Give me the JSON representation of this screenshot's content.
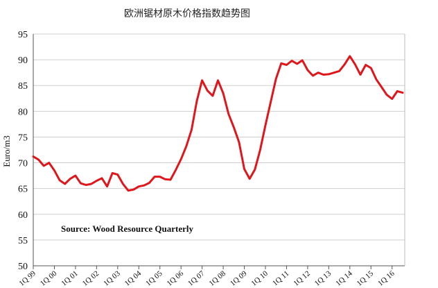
{
  "chart_data": {
    "type": "line",
    "title": "欧洲锯材原木价格指数趋势图",
    "ylabel": "Euro/m3",
    "xlabel": "",
    "ylim": [
      50,
      95
    ],
    "yticks": [
      50,
      55,
      60,
      65,
      70,
      75,
      80,
      85,
      90,
      95
    ],
    "xlim": [
      0,
      70.4
    ],
    "xticks": [
      {
        "label": "1Q 99",
        "x": 0
      },
      {
        "label": "1Q 00",
        "x": 4
      },
      {
        "label": "1Q 01",
        "x": 8
      },
      {
        "label": "1Q 02",
        "x": 12
      },
      {
        "label": "1Q 03",
        "x": 16
      },
      {
        "label": "1Q 04",
        "x": 20
      },
      {
        "label": "1Q 05",
        "x": 24
      },
      {
        "label": "1Q 06",
        "x": 28
      },
      {
        "label": "1Q 07",
        "x": 32
      },
      {
        "label": "1Q 08",
        "x": 36
      },
      {
        "label": "1Q 09",
        "x": 40
      },
      {
        "label": "1Q 10",
        "x": 44
      },
      {
        "label": "1Q 11",
        "x": 48
      },
      {
        "label": "1Q 12",
        "x": 52
      },
      {
        "label": "1Q 13",
        "x": 56
      },
      {
        "label": "1Q 14",
        "x": 60
      },
      {
        "label": "1Q 15",
        "x": 64
      },
      {
        "label": "1Q 16",
        "x": 68
      }
    ],
    "grid": true,
    "line_color": "#e0161b",
    "annotation": "Source: Wood Resource Quarterly",
    "series": [
      {
        "name": "",
        "x": [
          0,
          1,
          2,
          3,
          4,
          5,
          6,
          7,
          8,
          9,
          10,
          11,
          12,
          13,
          14,
          15,
          16,
          17,
          18,
          19,
          20,
          21,
          22,
          23,
          24,
          25,
          26,
          27,
          28,
          29,
          30,
          31,
          32,
          33,
          34,
          35,
          36,
          37,
          38,
          39,
          40,
          41,
          42,
          43,
          44,
          45,
          46,
          47,
          48,
          49,
          50,
          51,
          52,
          53,
          54,
          55,
          56,
          57,
          58,
          59,
          60,
          61,
          62,
          63,
          64,
          65,
          66,
          67,
          68,
          69,
          70
        ],
        "values": [
          71.2,
          70.6,
          69.4,
          70.0,
          68.5,
          66.6,
          65.9,
          66.9,
          67.5,
          66.0,
          65.7,
          65.9,
          66.5,
          67.0,
          65.4,
          68.0,
          67.7,
          65.9,
          64.6,
          64.8,
          65.4,
          65.6,
          66.1,
          67.3,
          67.3,
          66.8,
          66.7,
          68.6,
          70.7,
          73.2,
          76.4,
          82.0,
          86.0,
          84.0,
          83.0,
          86.0,
          83.5,
          79.5,
          76.9,
          74.0,
          68.8,
          66.9,
          68.7,
          72.5,
          77.3,
          81.8,
          86.3,
          89.3,
          89.0,
          89.8,
          89.2,
          89.9,
          88.0,
          86.9,
          87.5,
          87.1,
          87.2,
          87.5,
          87.8,
          89.1,
          90.7,
          89.1,
          87.1,
          89.0,
          88.4,
          86.2,
          84.7,
          83.2,
          82.4,
          83.9,
          83.6
        ]
      }
    ]
  }
}
